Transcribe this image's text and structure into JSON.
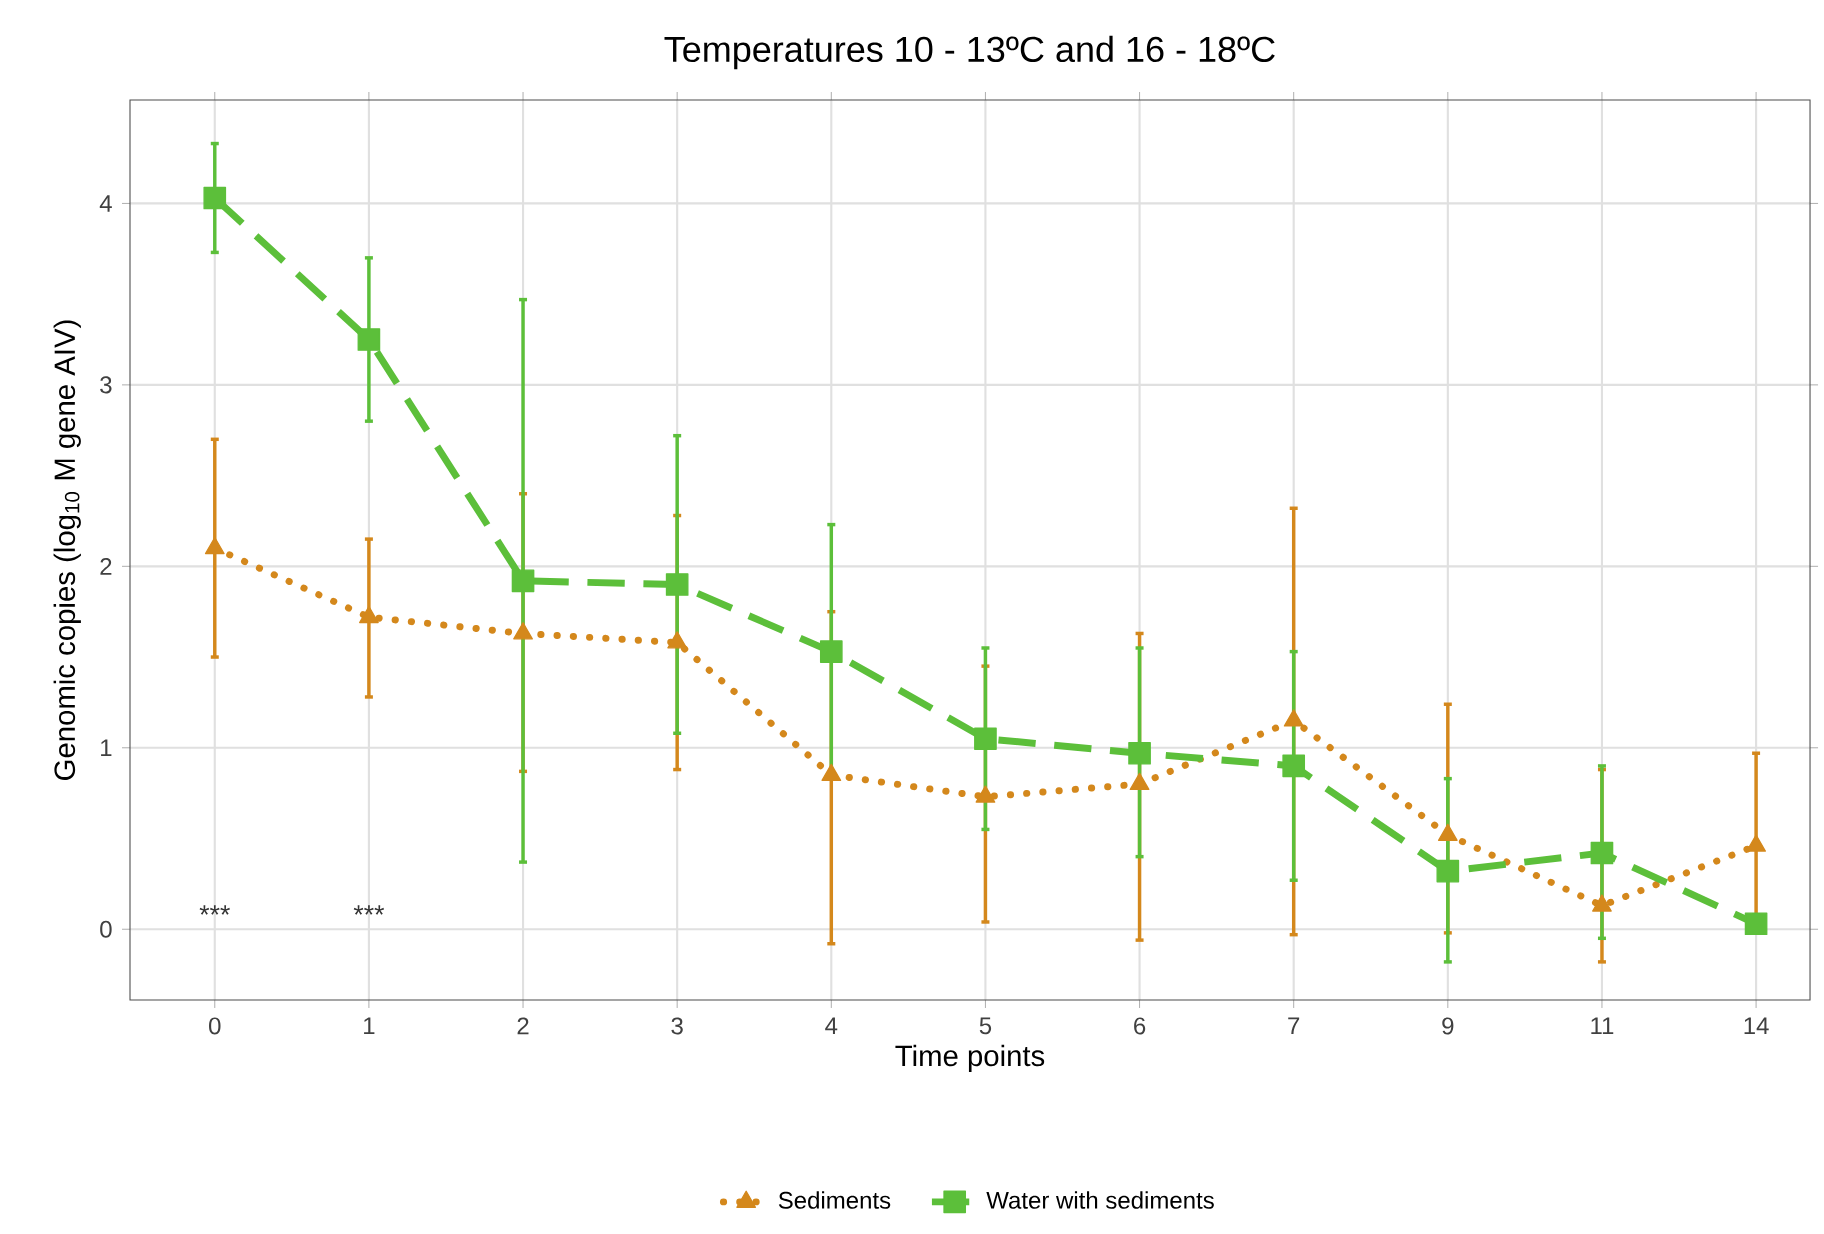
{
  "chart_data": {
    "type": "line",
    "title": "Temperatures 10 - 13ºC and 16 - 18ºC",
    "xlabel": "Time points",
    "ylabel": "Genomic copies (log$_{10}$ M gene AIV)",
    "categories": [
      "0",
      "1",
      "2",
      "3",
      "4",
      "5",
      "6",
      "7",
      "9",
      "11",
      "14"
    ],
    "ylim": [
      -0.39,
      4.57
    ],
    "yticks": [
      0,
      1,
      2,
      3,
      4
    ],
    "grid": true,
    "legend": "bottom",
    "series": [
      {
        "name": "Sediments",
        "color": "#d4881c",
        "marker": "triangle",
        "line_style": "dotted",
        "values": [
          2.1,
          1.72,
          1.63,
          1.58,
          0.85,
          0.73,
          0.8,
          1.15,
          0.52,
          0.13,
          0.46
        ],
        "errors": [
          [
            1.5,
            2.7
          ],
          [
            1.28,
            2.15
          ],
          [
            0.87,
            2.4
          ],
          [
            0.88,
            2.28
          ],
          [
            -0.08,
            1.75
          ],
          [
            0.04,
            1.45
          ],
          [
            -0.06,
            1.63
          ],
          [
            -0.03,
            2.32
          ],
          [
            -0.02,
            1.24
          ],
          [
            -0.18,
            0.88
          ],
          [
            0.0,
            0.97
          ]
        ]
      },
      {
        "name": "Water with sediments",
        "color": "#5cbf3a",
        "marker": "square",
        "line_style": "dashed",
        "values": [
          4.03,
          3.25,
          1.92,
          1.9,
          1.53,
          1.05,
          0.97,
          0.9,
          0.32,
          0.42,
          0.03
        ],
        "errors": [
          [
            3.73,
            4.33
          ],
          [
            2.8,
            3.7
          ],
          [
            0.37,
            3.47
          ],
          [
            1.08,
            2.72
          ],
          [
            0.83,
            2.23
          ],
          [
            0.55,
            1.55
          ],
          [
            0.4,
            1.55
          ],
          [
            0.27,
            1.53
          ],
          [
            -0.18,
            0.83
          ],
          [
            -0.05,
            0.9
          ],
          [
            -0.02,
            0.08
          ]
        ]
      }
    ],
    "annotations": [
      "***",
      "***"
    ]
  }
}
